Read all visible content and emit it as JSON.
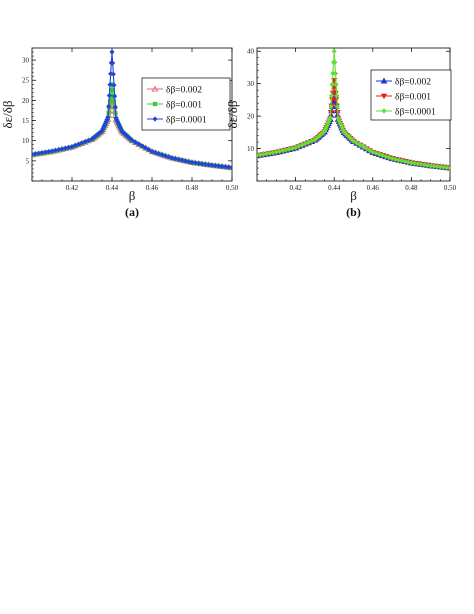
{
  "chart_data": [
    {
      "panel": "(a)",
      "type": "line",
      "xlabel": "β",
      "ylabel": "δɛ/δβ",
      "xlim": [
        0.4,
        0.5
      ],
      "ylim": [
        0,
        33
      ],
      "xticks": [
        0.42,
        0.44,
        0.46,
        0.48,
        0.5
      ],
      "xtick_labels": [
        "0.42",
        "0.44",
        "0.46",
        "0.48",
        "0.50"
      ],
      "yticks": [
        5,
        10,
        15,
        20,
        25,
        30
      ],
      "ytick_labels": [
        "5",
        "10",
        "15",
        "20",
        "25",
        "30"
      ],
      "peak_x": 0.44,
      "legend_position": "top-right",
      "grid": false,
      "series": [
        {
          "name": "δβ=0.002",
          "color": "#e8667a",
          "marker": "triangle-open",
          "x": [
            0.4,
            0.41,
            0.42,
            0.43,
            0.435,
            0.438,
            0.44,
            0.442,
            0.445,
            0.45,
            0.46,
            0.47,
            0.48,
            0.49,
            0.5
          ],
          "y": [
            6.5,
            7.3,
            8.4,
            10.3,
            12.3,
            15.3,
            21.5,
            15.2,
            12.2,
            10.0,
            7.3,
            5.7,
            4.6,
            3.9,
            3.3
          ]
        },
        {
          "name": "δβ=0.001",
          "color": "#33cc33",
          "marker": "square",
          "x": [
            0.4,
            0.41,
            0.42,
            0.43,
            0.435,
            0.438,
            0.44,
            0.442,
            0.445,
            0.45,
            0.46,
            0.47,
            0.48,
            0.49,
            0.5
          ],
          "y": [
            6.5,
            7.3,
            8.4,
            10.3,
            12.3,
            15.5,
            24.0,
            15.4,
            12.3,
            10.0,
            7.3,
            5.7,
            4.6,
            3.9,
            3.3
          ]
        },
        {
          "name": "δβ=0.0001",
          "color": "#2244dd",
          "marker": "diamond",
          "x": [
            0.4,
            0.41,
            0.42,
            0.43,
            0.435,
            0.438,
            0.44,
            0.442,
            0.445,
            0.45,
            0.46,
            0.47,
            0.48,
            0.49,
            0.5
          ],
          "y": [
            6.6,
            7.4,
            8.5,
            10.4,
            12.4,
            15.8,
            32.0,
            15.6,
            12.3,
            10.1,
            7.3,
            5.7,
            4.6,
            3.9,
            3.3
          ]
        }
      ]
    },
    {
      "panel": "(b)",
      "type": "line",
      "xlabel": "β",
      "ylabel": "δɛ/δβ",
      "xlim": [
        0.4,
        0.5
      ],
      "ylim": [
        0,
        41
      ],
      "xticks": [
        0.42,
        0.44,
        0.46,
        0.48,
        0.5
      ],
      "xtick_labels": [
        "0.42",
        "0.44",
        "0.46",
        "0.48",
        "0.50"
      ],
      "yticks": [
        10,
        20,
        30,
        40
      ],
      "ytick_labels": [
        "10",
        "20",
        "30",
        "40"
      ],
      "peak_x": 0.44,
      "legend_position": "top-right",
      "grid": false,
      "series": [
        {
          "name": "δβ=0.002",
          "color": "#2233cc",
          "marker": "triangle-up",
          "x": [
            0.4,
            0.41,
            0.42,
            0.43,
            0.435,
            0.438,
            0.44,
            0.442,
            0.445,
            0.45,
            0.46,
            0.47,
            0.48,
            0.49,
            0.5
          ],
          "y": [
            7.8,
            8.8,
            10.2,
            12.6,
            15.2,
            19.0,
            27.0,
            19.0,
            15.0,
            12.2,
            8.8,
            6.9,
            5.6,
            4.7,
            4.0
          ]
        },
        {
          "name": "δβ=0.001",
          "color": "#dd2222",
          "marker": "triangle-down",
          "x": [
            0.4,
            0.41,
            0.42,
            0.43,
            0.435,
            0.438,
            0.44,
            0.442,
            0.445,
            0.45,
            0.46,
            0.47,
            0.48,
            0.49,
            0.5
          ],
          "y": [
            7.8,
            8.8,
            10.2,
            12.6,
            15.2,
            19.2,
            31.0,
            19.2,
            15.0,
            12.2,
            8.8,
            6.9,
            5.6,
            4.7,
            4.0
          ]
        },
        {
          "name": "δβ=0.0001",
          "color": "#66dd33",
          "marker": "diamond",
          "x": [
            0.4,
            0.41,
            0.42,
            0.43,
            0.435,
            0.438,
            0.44,
            0.442,
            0.445,
            0.45,
            0.46,
            0.47,
            0.48,
            0.49,
            0.5
          ],
          "y": [
            7.9,
            8.9,
            10.3,
            12.7,
            15.3,
            19.5,
            40.0,
            19.4,
            15.1,
            12.3,
            8.9,
            6.9,
            5.6,
            4.7,
            4.0
          ]
        }
      ]
    }
  ]
}
